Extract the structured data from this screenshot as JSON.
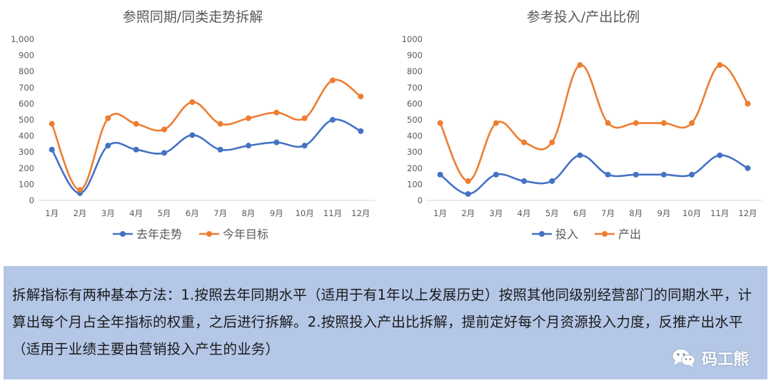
{
  "chart_data": [
    {
      "type": "line",
      "title": "参照同期/同类走势拆解",
      "categories": [
        "1月",
        "2月",
        "3月",
        "4月",
        "5月",
        "6月",
        "7月",
        "8月",
        "9月",
        "10月",
        "11月",
        "12月"
      ],
      "yticks": [
        "0",
        "100",
        "200",
        "300",
        "400",
        "500",
        "600",
        "700",
        "800",
        "900",
        "1,000"
      ],
      "ylim": [
        0,
        1000
      ],
      "grid": false,
      "legend_position": "bottom",
      "smooth": true,
      "series": [
        {
          "name": "去年走势",
          "color": "#4472c4",
          "values": [
            315,
            45,
            340,
            315,
            295,
            405,
            315,
            340,
            360,
            340,
            500,
            430
          ]
        },
        {
          "name": "今年目标",
          "color": "#ed7d31",
          "values": [
            475,
            65,
            510,
            475,
            440,
            610,
            475,
            510,
            545,
            510,
            745,
            645
          ]
        }
      ]
    },
    {
      "type": "line",
      "title": "参考投入/产出比例",
      "categories": [
        "1月",
        "2月",
        "3月",
        "4月",
        "5月",
        "6月",
        "7月",
        "8月",
        "9月",
        "10月",
        "11月",
        "12月"
      ],
      "yticks": [
        "0",
        "100",
        "200",
        "300",
        "400",
        "500",
        "600",
        "700",
        "800",
        "900",
        "1000"
      ],
      "ylim": [
        0,
        1000
      ],
      "grid": false,
      "legend_position": "bottom",
      "smooth": true,
      "series": [
        {
          "name": "投入",
          "color": "#4472c4",
          "values": [
            160,
            40,
            160,
            120,
            120,
            280,
            160,
            160,
            160,
            160,
            280,
            200
          ]
        },
        {
          "name": "产出",
          "color": "#ed7d31",
          "values": [
            480,
            120,
            480,
            360,
            360,
            840,
            480,
            480,
            480,
            480,
            840,
            600
          ]
        }
      ]
    }
  ],
  "note": {
    "text": "拆解指标有两种基本方法：1.按照去年同期水平（适用于有1年以上发展历史）按照其他同级别经营部门的同期水平，计算出每个月占全年指标的权重，之后进行拆解。2.按照投入产出比拆解，提前定好每个月资源投入力度，反推产出水平（适用于业绩主要由营销投入产生的业务）",
    "background": "#b4c7e7"
  },
  "watermark": {
    "label": "码工熊",
    "icon": "wechat-icon"
  }
}
